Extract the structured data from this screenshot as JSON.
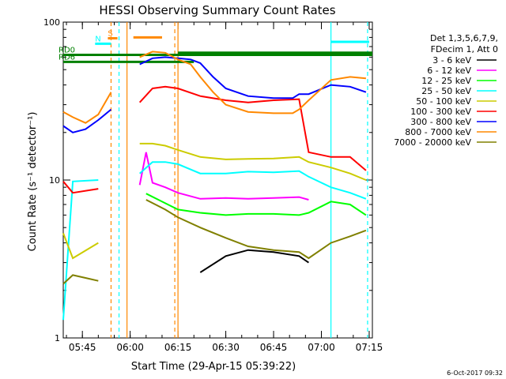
{
  "chart_data": {
    "type": "line",
    "title": "HESSI Observing Summary Count Rates",
    "xlabel": "Start Time (29-Apr-15 05:39:22)",
    "ylabel": "Count Rate (s⁻¹ detector⁻¹)",
    "yscale": "log",
    "ylim": [
      1,
      100
    ],
    "xlim_minutes_after_0539": [
      0,
      97
    ],
    "x_tick_labels": [
      "05:45",
      "06:00",
      "06:15",
      "06:30",
      "06:45",
      "07:00",
      "07:15"
    ],
    "y_tick_labels": [
      "1",
      "10",
      "100"
    ],
    "legend_header": [
      "Det 1,3,5,6,7,9,",
      "FDecim 1, Att 0"
    ],
    "series": [
      {
        "name": "3 - 6 keV",
        "color": "#000000",
        "x": [
          3,
          11,
          18,
          26,
          36,
          43,
          51,
          58,
          66,
          74,
          77
        ],
        "y": [
          null,
          null,
          null,
          null,
          null,
          2.6,
          3.3,
          3.6,
          3.5,
          3.3,
          3.0
        ]
      },
      {
        "name": "6 - 12 keV",
        "color": "#ff00ff",
        "x": [
          3,
          11,
          18,
          24,
          26,
          28,
          32,
          36,
          43,
          51,
          58,
          66,
          74,
          77
        ],
        "y": [
          null,
          null,
          null,
          9.3,
          15.0,
          9.6,
          9.0,
          8.3,
          7.6,
          7.7,
          7.6,
          7.7,
          7.8,
          7.5
        ]
      },
      {
        "name": "12 - 25 keV",
        "color": "#00ff00",
        "x": [
          3,
          11,
          18,
          26,
          36,
          43,
          51,
          58,
          66,
          74,
          77,
          84,
          90,
          95
        ],
        "y": [
          null,
          null,
          null,
          8.2,
          6.5,
          6.2,
          6.0,
          6.1,
          6.1,
          6.0,
          6.2,
          7.3,
          7.0,
          6.0
        ]
      },
      {
        "name": "25 - 50 keV",
        "color": "#00ffff",
        "x": [
          0,
          3,
          11,
          18,
          24,
          28,
          32,
          36,
          43,
          51,
          58,
          66,
          74,
          77,
          84,
          90,
          95
        ],
        "y": [
          1.3,
          9.8,
          10.0,
          null,
          11.0,
          13.0,
          13.0,
          12.6,
          11.0,
          11.0,
          11.3,
          11.2,
          11.4,
          10.5,
          9.0,
          8.3,
          7.6
        ]
      },
      {
        "name": "50 - 100 keV",
        "color": "#cccc00",
        "x": [
          0,
          3,
          11,
          18,
          24,
          28,
          32,
          36,
          43,
          51,
          58,
          66,
          74,
          77,
          84,
          90,
          95
        ],
        "y": [
          4.6,
          3.2,
          4.0,
          null,
          17.0,
          17.0,
          16.5,
          15.5,
          14.0,
          13.5,
          13.6,
          13.7,
          14.0,
          13.0,
          12.0,
          11.0,
          10.0
        ]
      },
      {
        "name": "100 - 300 keV",
        "color": "#ff0000",
        "x": [
          0,
          3,
          11,
          18,
          24,
          28,
          32,
          36,
          43,
          51,
          58,
          66,
          74,
          77,
          84,
          90,
          95
        ],
        "y": [
          9.8,
          8.3,
          8.8,
          null,
          31.0,
          38.0,
          39.0,
          38.0,
          34.0,
          32.0,
          31.0,
          32.0,
          32.5,
          15.0,
          14.0,
          14.0,
          11.5
        ]
      },
      {
        "name": "300 - 800 keV",
        "color": "#0000ff",
        "x": [
          0,
          3,
          7,
          11,
          15,
          18,
          24,
          28,
          32,
          36,
          40,
          43,
          47,
          51,
          58,
          66,
          72,
          74,
          77,
          84,
          90,
          95
        ],
        "y": [
          22.0,
          20.0,
          21.0,
          24.0,
          28.0,
          null,
          54.0,
          59.0,
          60.0,
          59.0,
          58.0,
          55.0,
          45.0,
          38.0,
          34.0,
          33.0,
          33.0,
          35.0,
          35.0,
          40.0,
          39.0,
          36.0
        ]
      },
      {
        "name": "800 - 7000 keV",
        "color": "#ff8800",
        "x": [
          0,
          3,
          7,
          11,
          15,
          18,
          24,
          28,
          32,
          36,
          40,
          43,
          47,
          51,
          58,
          66,
          72,
          74,
          77,
          84,
          90,
          95
        ],
        "y": [
          27.0,
          25.0,
          23.0,
          26.0,
          36.0,
          null,
          60.0,
          65.0,
          64.0,
          58.0,
          54.0,
          45.0,
          36.0,
          30.0,
          27.0,
          26.5,
          26.5,
          28.0,
          32.0,
          43.0,
          45.0,
          44.0
        ]
      },
      {
        "name": "7000 - 20000 keV",
        "color": "#808000",
        "x": [
          0,
          3,
          7,
          11,
          18,
          26,
          32,
          36,
          43,
          51,
          58,
          66,
          74,
          77,
          84,
          90,
          95
        ],
        "y": [
          2.2,
          2.5,
          2.4,
          2.3,
          null,
          7.5,
          6.5,
          5.8,
          5.0,
          4.3,
          3.8,
          3.6,
          3.5,
          3.2,
          4.0,
          4.4,
          4.8
        ]
      }
    ],
    "status_bars": [
      {
        "label": "RD0",
        "color": "#008000",
        "from": 0,
        "to": 97,
        "y": 62
      },
      {
        "label": "RD6",
        "color": "#008000",
        "from": 0,
        "to": 41,
        "y": 56
      },
      {
        "label": "S",
        "color": "#ff8800",
        "from": 14,
        "to": 17,
        "y": 79
      },
      {
        "label": "N",
        "color": "#00ffff",
        "from": 10,
        "to": 15,
        "y": 73
      },
      {
        "label": "",
        "color": "#ff8800",
        "from": 22,
        "to": 31,
        "y": 80
      },
      {
        "label": "",
        "color": "#00ffff",
        "from": 84,
        "to": 96,
        "y": 75
      },
      {
        "label": "",
        "color": "#008000",
        "from": 36,
        "to": 97,
        "y": 64
      }
    ],
    "vlines": [
      {
        "x": 15.0,
        "color": "#ff8800",
        "dash": true
      },
      {
        "x": 17.5,
        "color": "#00ffff",
        "dash": true
      },
      {
        "x": 20.0,
        "color": "#ff8800",
        "dash": false
      },
      {
        "x": 35.0,
        "color": "#ff8800",
        "dash": true
      },
      {
        "x": 36.0,
        "color": "#ff8800",
        "dash": false
      },
      {
        "x": 84.0,
        "color": "#00ffff",
        "dash": false
      },
      {
        "x": 95.5,
        "color": "#00ffff",
        "dash": true
      }
    ]
  },
  "footer": {
    "date": "6-Oct-2017 09:32"
  }
}
